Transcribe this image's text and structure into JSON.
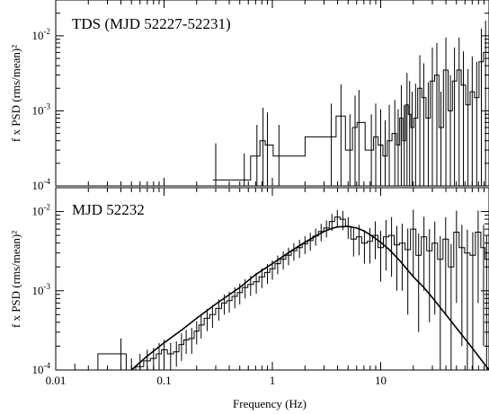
{
  "chart_data": [
    {
      "type": "line",
      "panel": "top",
      "title": "TDS (MJD 52227-52231)",
      "ylabel": "f x PSD (rms/mean)²",
      "xscale": "log",
      "yscale": "log",
      "xlim": [
        0.01,
        100
      ],
      "ylim": [
        0.0001,
        0.03
      ],
      "y_tick_labels": [
        {
          "value": 0.01,
          "base": "10",
          "exp": "-2"
        },
        {
          "value": 0.001,
          "base": "10",
          "exp": "-3"
        },
        {
          "value": 0.0001,
          "base": "10",
          "exp": "-4"
        }
      ],
      "series": [
        {
          "style": "step-with-errorbars",
          "x": [
            0.3,
            0.55,
            0.72,
            0.82,
            0.9,
            1.15,
            3.5,
            4.3,
            5.2,
            5.8,
            6.3,
            8.2,
            9.0,
            10.0,
            11.0,
            12.0,
            13.5,
            14.5,
            15.5,
            16.5,
            17.5,
            18.5,
            19.5,
            21.0,
            23.0,
            25.0,
            27.5,
            30.0,
            33.0,
            36.0,
            40.0,
            44.0,
            48.0,
            53.0,
            58.0,
            64.0,
            70.0,
            77.0,
            85.0,
            93.0
          ],
          "y": [
            0.00012,
            0.00012,
            0.00025,
            0.0004,
            0.00035,
            0.00025,
            0.00045,
            0.00085,
            0.0003,
            0.0006,
            0.0007,
            0.0003,
            0.00045,
            0.00035,
            0.00025,
            0.0004,
            0.0005,
            0.00035,
            0.0008,
            0.0004,
            0.0012,
            0.0009,
            0.0006,
            0.0008,
            0.002,
            0.0015,
            0.0008,
            0.0025,
            0.003,
            0.0006,
            0.0035,
            0.001,
            0.0025,
            0.0035,
            0.0022,
            0.0012,
            0.0018,
            0.0015,
            0.0045,
            0.006
          ],
          "err_y": [
            0.00025,
            0.00015,
            0.0004,
            0.0007,
            0.0006,
            0.0004,
            0.0008,
            0.0014,
            0.0006,
            0.001,
            0.0012,
            0.0006,
            0.0008,
            0.0007,
            0.0005,
            0.0008,
            0.0009,
            0.0007,
            0.0014,
            0.0008,
            0.002,
            0.0016,
            0.0012,
            0.0015,
            0.0035,
            0.0028,
            0.0016,
            0.0045,
            0.005,
            0.0012,
            0.006,
            0.002,
            0.0045,
            0.006,
            0.004,
            0.0024,
            0.0035,
            0.003,
            0.008,
            0.01
          ]
        }
      ]
    },
    {
      "type": "line",
      "panel": "bottom",
      "title": "MJD 52232",
      "xlabel": "Frequency (Hz)",
      "ylabel": "f x PSD (rms/mean)²",
      "xscale": "log",
      "yscale": "log",
      "xlim": [
        0.01,
        100
      ],
      "ylim": [
        0.0001,
        0.02
      ],
      "x_tick_labels": [
        "0.01",
        "0.1",
        "1",
        "10"
      ],
      "y_tick_labels": [
        {
          "value": 0.01,
          "base": "10",
          "exp": "-2"
        },
        {
          "value": 0.001,
          "base": "10",
          "exp": "-3"
        },
        {
          "value": 0.0001,
          "base": "10",
          "exp": "-4"
        }
      ],
      "series": [
        {
          "style": "step-with-errorbars",
          "x": [
            0.015,
            0.04,
            0.05,
            0.06,
            0.07,
            0.08,
            0.09,
            0.1,
            0.115,
            0.13,
            0.145,
            0.16,
            0.18,
            0.2,
            0.22,
            0.25,
            0.28,
            0.32,
            0.36,
            0.4,
            0.45,
            0.5,
            0.56,
            0.63,
            0.71,
            0.8,
            0.9,
            1.0,
            1.12,
            1.26,
            1.41,
            1.58,
            1.78,
            2.0,
            2.24,
            2.51,
            2.82,
            3.16,
            3.55,
            3.98,
            4.47,
            5.01,
            5.62,
            6.31,
            7.08,
            7.94,
            8.91,
            10.0,
            11.2,
            12.6,
            14.1,
            15.8,
            17.8,
            20.0,
            22.4,
            25.1,
            28.2,
            31.6,
            35.5,
            39.8,
            44.7,
            50.1,
            56.2,
            63.1,
            70.8,
            79.4,
            89.1,
            95.0
          ],
          "y": [
            0.0001,
            0.00016,
            0.0001,
            0.00011,
            0.00013,
            0.00014,
            0.00016,
            0.00018,
            0.00016,
            0.00017,
            0.00021,
            0.00024,
            0.00025,
            0.00031,
            0.00037,
            0.00045,
            0.0005,
            0.0006,
            0.0007,
            0.00075,
            0.00085,
            0.00095,
            0.0011,
            0.0012,
            0.0013,
            0.0015,
            0.0017,
            0.0019,
            0.0022,
            0.0025,
            0.0028,
            0.0032,
            0.0035,
            0.0039,
            0.0043,
            0.0049,
            0.0056,
            0.0062,
            0.0075,
            0.0085,
            0.008,
            0.0065,
            0.0045,
            0.0048,
            0.004,
            0.0042,
            0.005,
            0.0035,
            0.0048,
            0.005,
            0.0038,
            0.004,
            0.0033,
            0.006,
            0.0028,
            0.0048,
            0.0032,
            0.004,
            0.0025,
            0.0045,
            0.002,
            0.0055,
            0.0035,
            0.003,
            0.0028,
            0.0055,
            0.0035,
            0.0025
          ],
          "err_y": [
            2e-05,
            9e-05,
            4e-05,
            5e-05,
            5e-05,
            5e-05,
            6e-05,
            6e-05,
            6e-05,
            6e-05,
            8e-05,
            8e-05,
            9e-05,
            0.0001,
            0.00012,
            0.00014,
            0.00016,
            0.00018,
            0.0002,
            0.00022,
            0.00025,
            0.00028,
            0.0003,
            0.00034,
            0.00038,
            0.00042,
            0.00048,
            0.00052,
            0.00058,
            0.00065,
            0.0007,
            0.0008,
            0.0009,
            0.001,
            0.0011,
            0.0012,
            0.0014,
            0.0015,
            0.0018,
            0.002,
            0.0022,
            0.002,
            0.0018,
            0.002,
            0.0018,
            0.002,
            0.0025,
            0.0022,
            0.003,
            0.0035,
            0.0028,
            0.003,
            0.0028,
            0.0045,
            0.0025,
            0.0038,
            0.0028,
            0.0035,
            0.0024,
            0.004,
            0.0019,
            0.0048,
            0.0033,
            0.0029,
            0.0027,
            0.0048,
            0.0033,
            0.0024
          ]
        },
        {
          "style": "line",
          "model": "lorentzian",
          "x": [
            0.05,
            0.07,
            0.1,
            0.15,
            0.2,
            0.3,
            0.5,
            0.7,
            1.0,
            1.5,
            2.0,
            2.5,
            3.0,
            3.5,
            4.0,
            5.0,
            6.0,
            7.0,
            8.0,
            10.0,
            12.0,
            15.0,
            20.0,
            25.0,
            30.0,
            40.0,
            50.0,
            70.0,
            100.0
          ],
          "y": [
            0.0001,
            0.00015,
            0.00022,
            0.00033,
            0.00045,
            0.00068,
            0.0011,
            0.0016,
            0.0022,
            0.0032,
            0.0041,
            0.0049,
            0.0056,
            0.0061,
            0.0064,
            0.0065,
            0.0062,
            0.0057,
            0.0051,
            0.0041,
            0.0033,
            0.0024,
            0.0015,
            0.0011,
            0.00082,
            0.0005,
            0.00034,
            0.00019,
            0.0001
          ]
        }
      ]
    }
  ]
}
